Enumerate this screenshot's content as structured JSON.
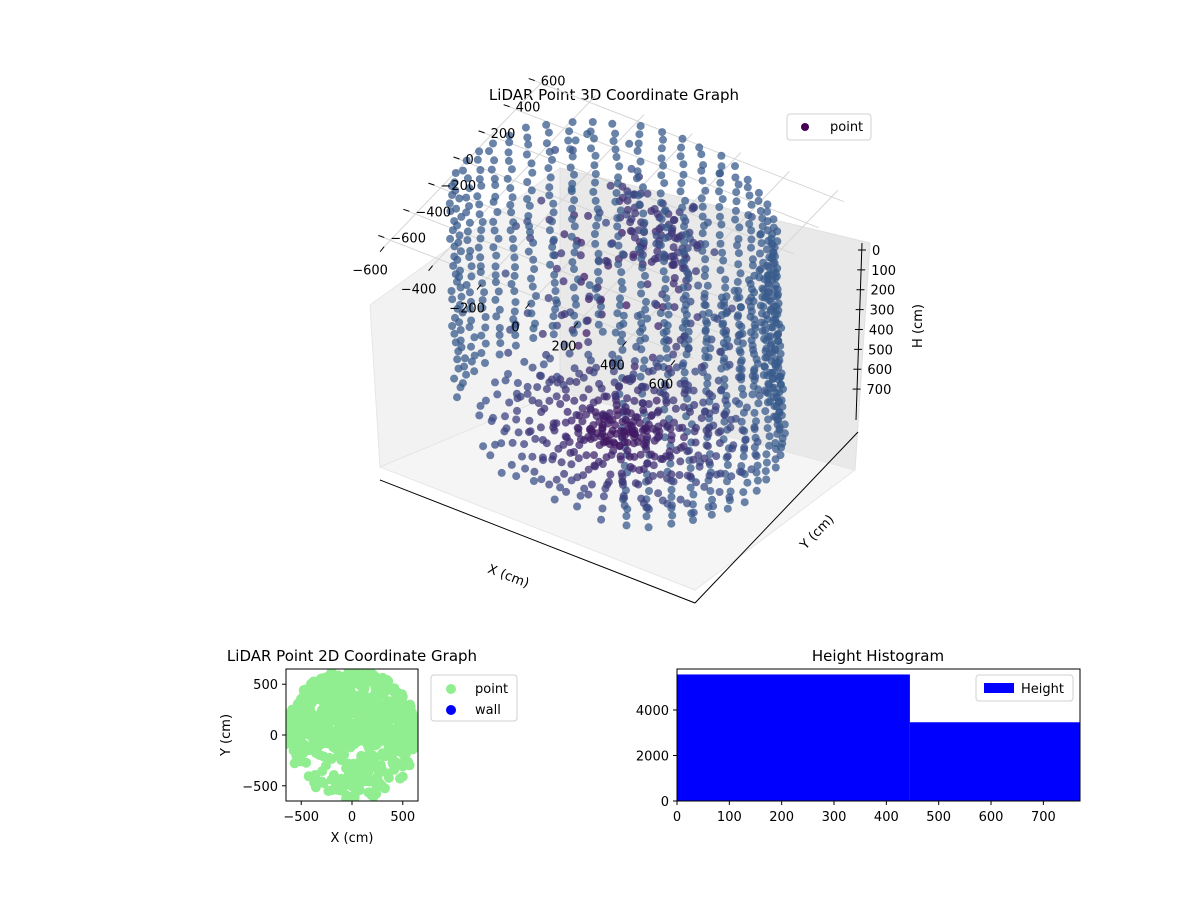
{
  "chart_data": [
    {
      "type": "scatter",
      "projection": "3d",
      "title": "LiDAR Point 3D Coordinate Graph",
      "xlabel": "X (cm)",
      "ylabel": "Y (cm)",
      "zlabel": "H (cm)",
      "x_ticks": [
        "−600",
        "−400",
        "−200",
        "0",
        "200",
        "400",
        "600"
      ],
      "y_ticks": [
        "−600",
        "−400",
        "−200",
        "0",
        "200",
        "400",
        "600"
      ],
      "z_ticks": [
        "0",
        "100",
        "200",
        "300",
        "400",
        "500",
        "600",
        "700"
      ],
      "xlim": [
        -650,
        650
      ],
      "ylim": [
        -650,
        650
      ],
      "zlim": [
        0,
        770
      ],
      "z_inverted": true,
      "colormap": "viridis",
      "grid": true,
      "legend": {
        "position": "top-right",
        "entries": [
          {
            "label": "point",
            "color": "#440154"
          }
        ]
      },
      "series": [
        {
          "name": "point",
          "description_shape": "cylindrical wall of points around the sensor plus radial floor pattern",
          "wall_radius": 600,
          "wall_arc_deg": [
            -60,
            200
          ],
          "height_range": [
            0,
            770
          ]
        }
      ]
    },
    {
      "type": "scatter",
      "title": "LiDAR Point 2D Coordinate Graph",
      "xlabel": "X (cm)",
      "ylabel": "Y (cm)",
      "x_ticks": [
        "−500",
        "0",
        "500"
      ],
      "y_ticks": [
        "500",
        "0",
        "−500"
      ],
      "xlim": [
        -650,
        650
      ],
      "ylim": [
        -650,
        650
      ],
      "legend": {
        "position": "outside-right",
        "entries": [
          {
            "label": "point",
            "color": "#90ee90"
          },
          {
            "label": "wall",
            "color": "#0000ff"
          }
        ]
      }
    },
    {
      "type": "bar",
      "subtype": "histogram",
      "title": "Height Histogram",
      "x_ticks": [
        "0",
        "100",
        "200",
        "300",
        "400",
        "500",
        "600",
        "700"
      ],
      "y_ticks": [
        "0",
        "2000",
        "4000"
      ],
      "xlim": [
        0,
        770
      ],
      "ylim": [
        0,
        5800
      ],
      "bins": [
        {
          "from": 0,
          "to": 445,
          "count": 5560
        },
        {
          "from": 445,
          "to": 770,
          "count": 3460
        }
      ],
      "legend": {
        "position": "top-right",
        "entries": [
          {
            "label": "Height",
            "color": "#0000ff"
          }
        ]
      }
    }
  ]
}
